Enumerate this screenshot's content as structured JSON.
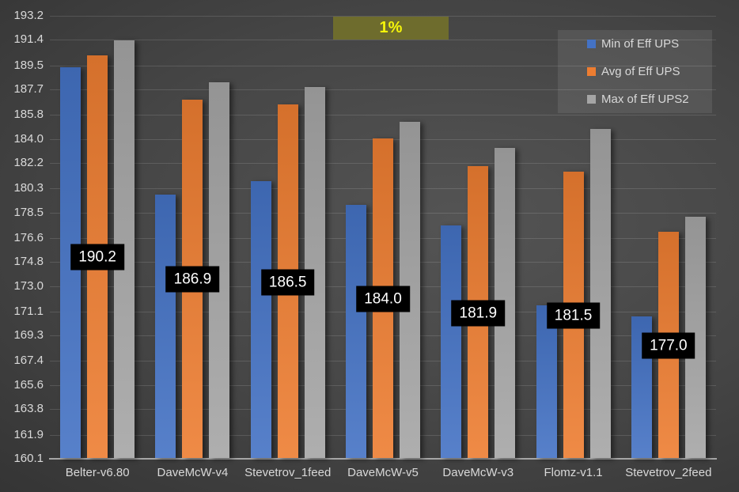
{
  "chart_data": {
    "type": "bar",
    "title": "",
    "categories": [
      "Belter-v6.80",
      "DaveMcW-v4",
      "Stevetrov_1feed",
      "DaveMcW-v5",
      "DaveMcW-v3",
      "Flomz-v1.1",
      "Stevetrov_2feed"
    ],
    "series": [
      {
        "name": "Min of Eff UPS",
        "color": "#4472C4",
        "values": [
          189.3,
          179.8,
          180.8,
          179.0,
          177.5,
          171.5,
          170.7
        ]
      },
      {
        "name": "Avg of Eff UPS",
        "color": "#ED7D31",
        "values": [
          190.2,
          186.9,
          186.5,
          184.0,
          181.9,
          181.5,
          177.0
        ]
      },
      {
        "name": "Max of Eff UPS2",
        "color": "#A5A5A5",
        "values": [
          191.3,
          188.2,
          187.8,
          185.2,
          183.3,
          184.7,
          178.1
        ]
      }
    ],
    "data_labels": {
      "on_series": "Avg of Eff UPS",
      "values": [
        "190.2",
        "186.9",
        "186.5",
        "184.0",
        "181.9",
        "181.5",
        "177.0"
      ]
    },
    "y_axis": {
      "min": 160.1,
      "max": 193.2,
      "ticks": [
        193.2,
        191.4,
        189.5,
        187.7,
        185.8,
        184.0,
        182.2,
        180.3,
        178.5,
        176.6,
        174.8,
        173.0,
        171.1,
        169.3,
        167.4,
        165.6,
        163.8,
        161.9,
        160.1
      ]
    },
    "grid": true,
    "legend_position": "top-right",
    "annotation": {
      "text": "1%",
      "bg_color": "#6E6C2D",
      "text_color": "#F5F50A"
    }
  },
  "colors": {
    "axis_text": "#D9D9D9",
    "gridline": "rgba(255,255,255,0.13)",
    "axis_line": "#A6A6A6",
    "data_label_bg": "#000000",
    "data_label_text": "#FFFFFF",
    "legend_bg": "#454545"
  }
}
